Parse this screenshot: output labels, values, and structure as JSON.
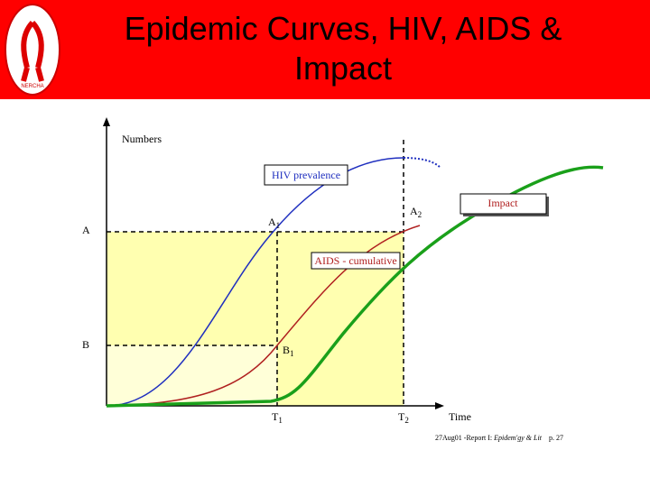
{
  "header": {
    "title": "Epidemic Curves, HIV, AIDS & Impact",
    "logo_text": "NERCHA"
  },
  "diagram": {
    "y_axis_label": "Numbers",
    "x_axis_label": "Time",
    "boxes": {
      "hiv": "HIV prevalence",
      "impact": "Impact",
      "aids": "AIDS - cumulative"
    },
    "levels": [
      {
        "main": "A",
        "sub": ""
      },
      {
        "main": "B",
        "sub": ""
      }
    ],
    "points": [
      {
        "main": "A",
        "sub": "1"
      },
      {
        "main": "A",
        "sub": "2"
      },
      {
        "main": "B",
        "sub": "1"
      },
      {
        "main": "T",
        "sub": "1"
      },
      {
        "main": "T",
        "sub": "2"
      }
    ]
  },
  "footer": {
    "date": "27Aug01 -Report I: ",
    "report": "Epidem'gy & Lit",
    "page": "p. 27"
  }
}
